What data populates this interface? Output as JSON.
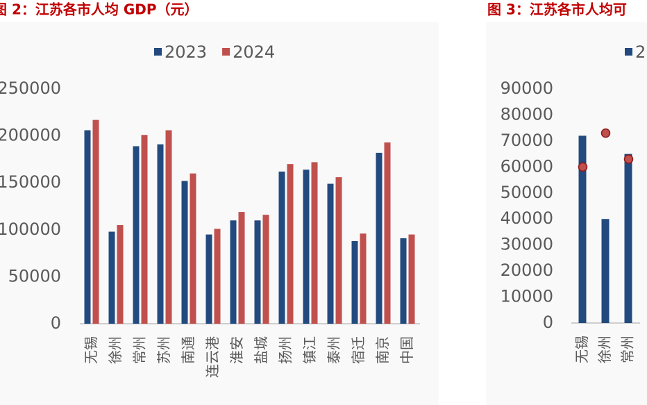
{
  "chart_data": [
    {
      "type": "bar",
      "title": "图 2：江苏各市人均 GDP（元）",
      "categories": [
        "无锡",
        "徐州",
        "常州",
        "苏州",
        "南通",
        "连云港",
        "淮安",
        "盐城",
        "扬州",
        "镇江",
        "泰州",
        "宿迁",
        "南京",
        "中国"
      ],
      "series": [
        {
          "name": "2023",
          "color": "#234a7e",
          "values": [
            206000,
            98000,
            189000,
            191000,
            152000,
            95000,
            110000,
            110000,
            162000,
            164000,
            149000,
            88000,
            182000,
            91000
          ]
        },
        {
          "name": "2024",
          "color": "#c0504d",
          "values": [
            217000,
            105000,
            201000,
            206000,
            160000,
            101000,
            119000,
            116000,
            170000,
            172000,
            156000,
            96000,
            193000,
            95000
          ]
        }
      ],
      "ylim": [
        0,
        250000
      ],
      "yticks": [
        0,
        50000,
        100000,
        150000,
        200000,
        250000
      ]
    },
    {
      "type": "bar",
      "title": "图 3：江苏各市人均可",
      "categories": [
        "无锡",
        "徐州",
        "常州"
      ],
      "series": [
        {
          "name": "2",
          "color": "#234a7e",
          "style": "bar",
          "values": [
            72000,
            40000,
            65000
          ]
        },
        {
          "color": "#c0504d",
          "style": "point",
          "values": [
            60000,
            73000,
            63000
          ]
        }
      ],
      "ylim": [
        0,
        90000
      ],
      "yticks": [
        0,
        10000,
        20000,
        30000,
        40000,
        50000,
        60000,
        70000,
        80000,
        90000
      ]
    }
  ]
}
